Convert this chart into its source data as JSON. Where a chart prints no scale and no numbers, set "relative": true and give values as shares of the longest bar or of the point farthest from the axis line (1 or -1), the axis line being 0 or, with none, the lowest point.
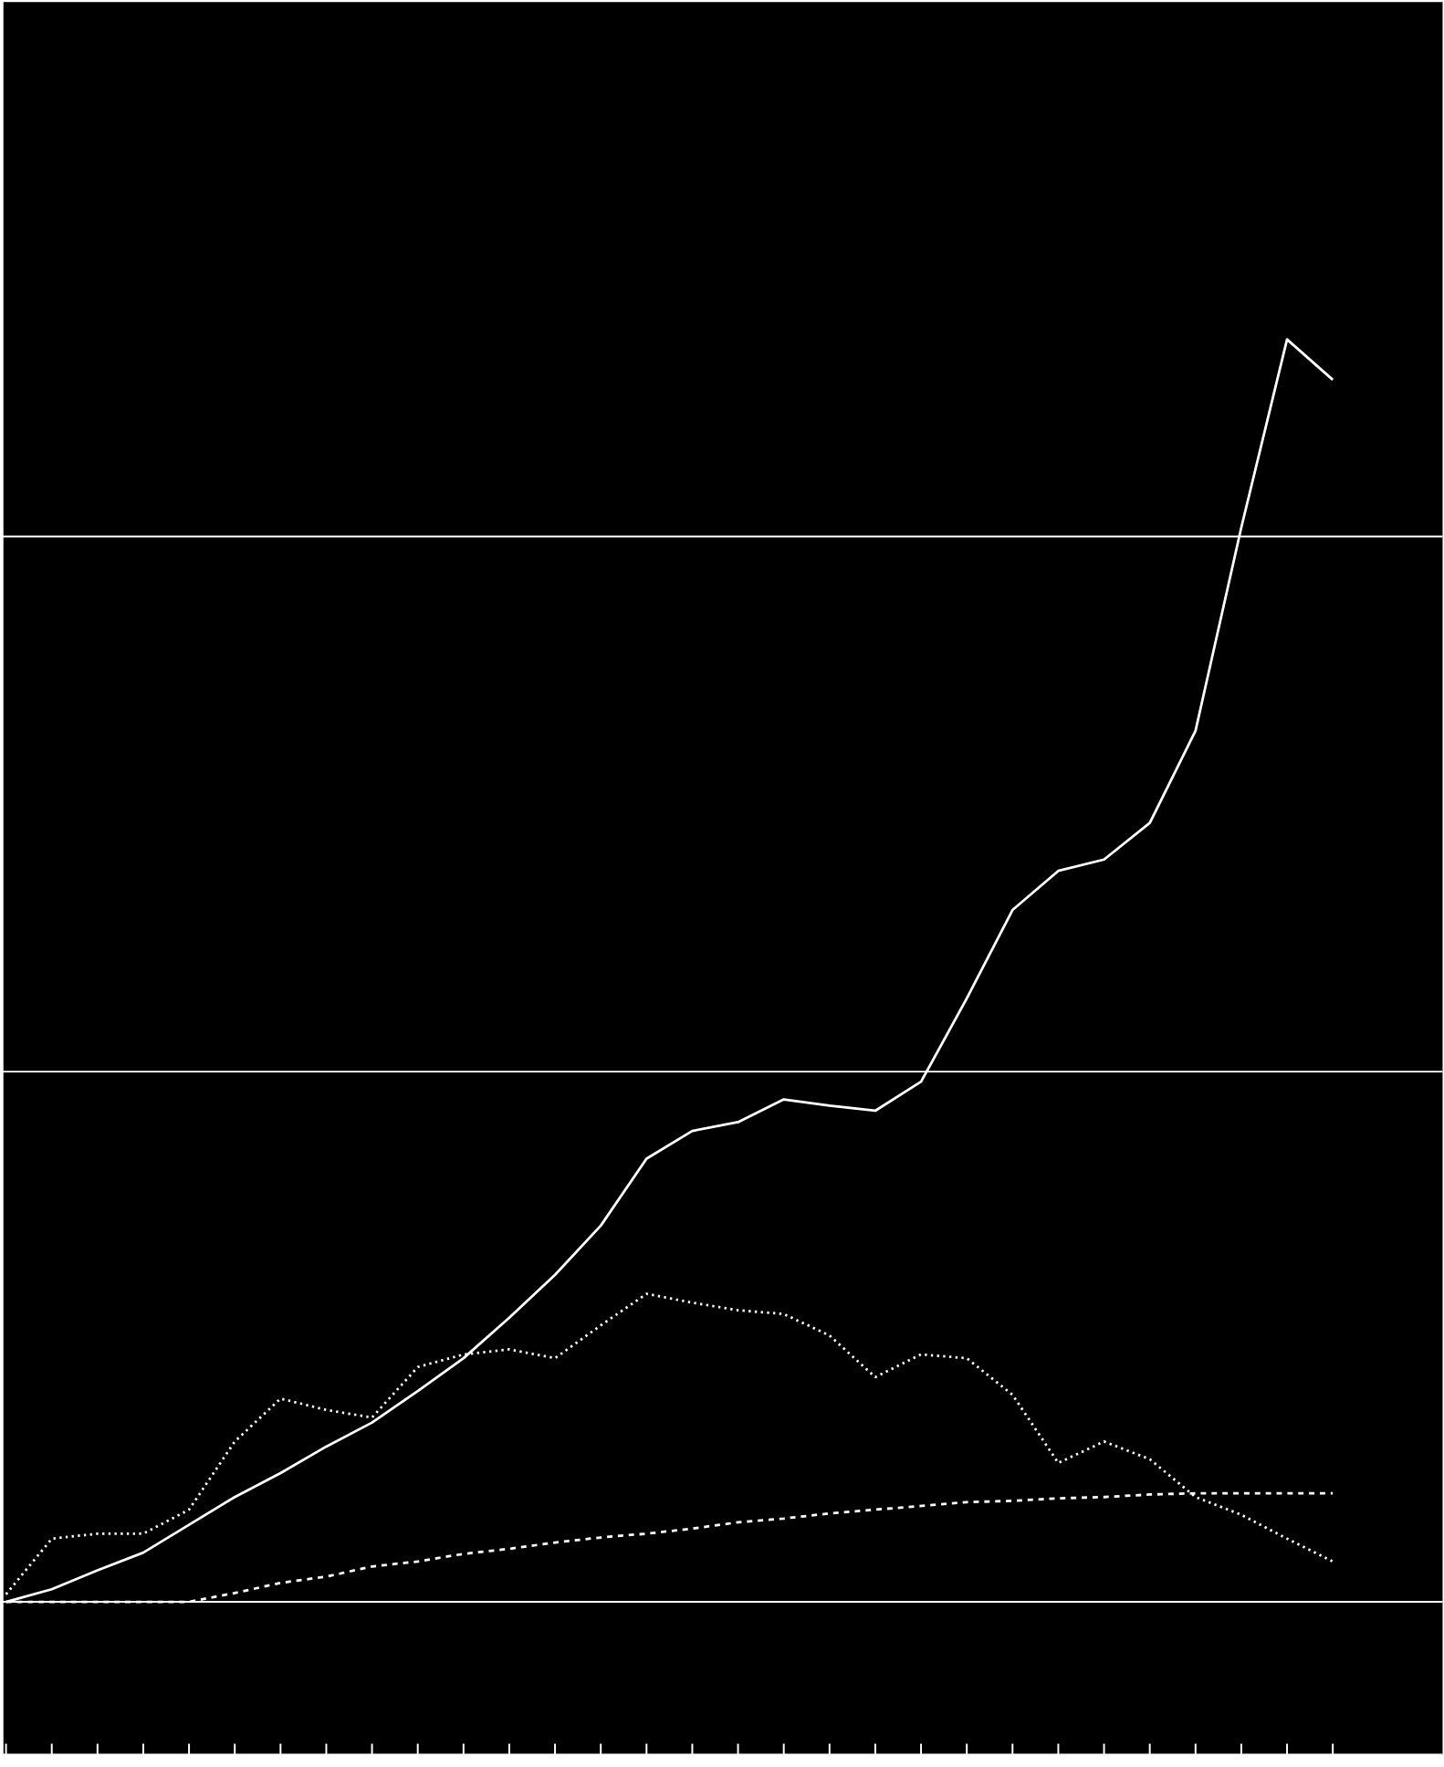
{
  "chart_data": {
    "type": "line",
    "relative": true,
    "categories": [
      null,
      null,
      null,
      null,
      null,
      null,
      null,
      null,
      null,
      null,
      null,
      null,
      null,
      null,
      null,
      null,
      null,
      null,
      null,
      null,
      null,
      null,
      null,
      null,
      null,
      null,
      null,
      null,
      null,
      null
    ],
    "series": [
      {
        "color": "#ffffff",
        "line_style": "solid",
        "values": [
          0,
          0.01,
          0.025,
          0.039,
          0.061,
          0.083,
          0.102,
          0.123,
          0.142,
          0.167,
          0.193,
          0.225,
          0.259,
          0.298,
          0.351,
          0.373,
          0.38,
          0.398,
          0.393,
          0.389,
          0.412,
          0.478,
          0.548,
          0.579,
          0.588,
          0.617,
          0.69,
          0.851,
          1,
          0.968
        ]
      },
      {
        "color": "#ffffff",
        "line_style": "dotted",
        "values": [
          0.006,
          0.05,
          0.054,
          0.054,
          0.073,
          0.127,
          0.161,
          0.152,
          0.146,
          0.186,
          0.196,
          0.2,
          0.193,
          0.219,
          0.244,
          0.237,
          0.231,
          0.228,
          0.211,
          0.178,
          0.196,
          0.193,
          0.164,
          0.11,
          0.127,
          0.113,
          0.083,
          0.069,
          0.05,
          0.032
        ]
      },
      {
        "color": "#ffffff",
        "line_style": "dashed",
        "values": [
          0,
          0,
          0,
          0,
          0,
          0.007,
          0.015,
          0.02,
          0.028,
          0.032,
          0.038,
          0.042,
          0.047,
          0.051,
          0.054,
          0.058,
          0.063,
          0.066,
          0.07,
          0.073,
          0.076,
          0.079,
          0.08,
          0.082,
          0.083,
          0.085,
          0.086,
          0.086,
          0.086,
          0.086
        ]
      }
    ],
    "ref_lines": [
      {
        "axis": "y",
        "value": 0,
        "color": "#ffffff"
      },
      {
        "axis": "y",
        "value": 0.42,
        "color": "#ffffff"
      },
      {
        "axis": "y",
        "value": 0.844,
        "color": "#ffffff"
      }
    ]
  }
}
